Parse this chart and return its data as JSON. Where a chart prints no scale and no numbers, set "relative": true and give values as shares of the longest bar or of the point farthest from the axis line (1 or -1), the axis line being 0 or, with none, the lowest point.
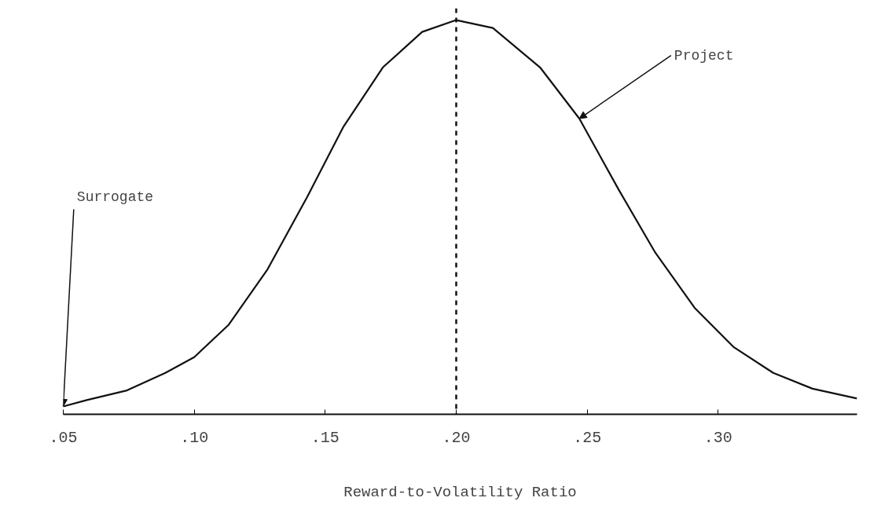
{
  "chart_data": {
    "type": "line",
    "relative": true,
    "xlabel": "Reward-to-Volatility Ratio",
    "xlim": [
      0.05,
      0.353
    ],
    "xticks": [
      {
        "value": 0.05,
        "label": ".05"
      },
      {
        "value": 0.1,
        "label": ".10"
      },
      {
        "value": 0.15,
        "label": ".15"
      },
      {
        "value": 0.2,
        "label": ".20"
      },
      {
        "value": 0.25,
        "label": ".25"
      },
      {
        "value": 0.3,
        "label": ".30"
      }
    ],
    "series": [
      {
        "color": "#111111",
        "x": [
          0.05,
          0.059,
          0.074,
          0.089,
          0.1,
          0.113,
          0.128,
          0.143,
          0.157,
          0.172,
          0.187,
          0.2,
          0.214,
          0.232,
          0.247,
          0.262,
          0.276,
          0.291,
          0.306,
          0.321,
          0.336,
          0.353
        ],
        "values": [
          0.02,
          0.036,
          0.06,
          0.105,
          0.145,
          0.226,
          0.368,
          0.55,
          0.73,
          0.88,
          0.97,
          1.0,
          0.98,
          0.88,
          0.75,
          0.57,
          0.41,
          0.27,
          0.17,
          0.105,
          0.065,
          0.04
        ]
      }
    ],
    "ref_lines": [
      {
        "axis": "x",
        "value": 0.2,
        "color": "#111111",
        "line_style": "dashed"
      }
    ],
    "annotations": [
      {
        "text": "Project",
        "x": 0.247,
        "y": 0.75
      },
      {
        "text": "Surrogate",
        "x": 0.05,
        "y": 0.02
      }
    ],
    "grid": false,
    "marker": "none",
    "line_style": "solid"
  }
}
